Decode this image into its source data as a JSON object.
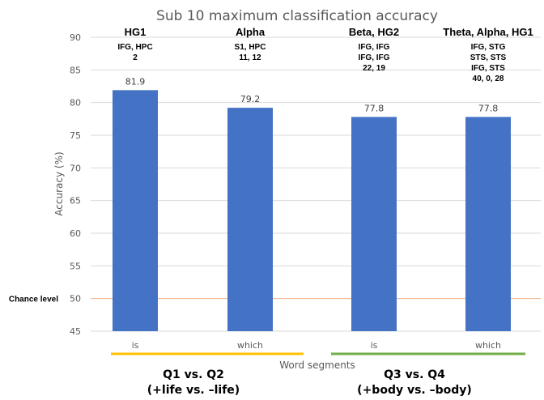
{
  "chart_data": {
    "type": "bar",
    "title": "Sub 10 maximum classification accuracy",
    "xlabel": "Word segments",
    "ylabel": "Accuracy (%)",
    "ylim": [
      45,
      90
    ],
    "yticks": [
      45,
      50,
      55,
      60,
      65,
      70,
      75,
      80,
      85,
      90
    ],
    "grid": true,
    "categories": [
      "is",
      "which",
      "is",
      "which"
    ],
    "values": [
      81.9,
      79.2,
      77.8,
      77.8
    ],
    "value_labels": [
      "81.9",
      "79.2",
      "77.8",
      "77.8"
    ],
    "bar_color": "#4472C4",
    "annotations": [
      {
        "title": "HG1",
        "lines": [
          "IFG, HPC",
          "2"
        ]
      },
      {
        "title": "Alpha",
        "lines": [
          "S1, HPC",
          "11, 12"
        ]
      },
      {
        "title": "Beta, HG2",
        "lines": [
          "IFG, IFG",
          "IFG, IFG",
          "22, 19"
        ]
      },
      {
        "title": "Theta, Alpha, HG1",
        "lines": [
          "IFG, STG",
          "STS, STS",
          "IFG, STS",
          "40, 0, 28"
        ]
      }
    ],
    "reference_line": {
      "label": "Chance level",
      "value": 50,
      "color": "#F4B183"
    },
    "groups": [
      {
        "line1": "Q1 vs. Q2",
        "line2": "(+life vs. –life)",
        "color": "#FFC000",
        "bars": [
          0,
          1
        ]
      },
      {
        "line1": "Q3 vs. Q4",
        "line2": "(+body vs. –body)",
        "color": "#70AD47",
        "bars": [
          2,
          3
        ]
      }
    ]
  }
}
